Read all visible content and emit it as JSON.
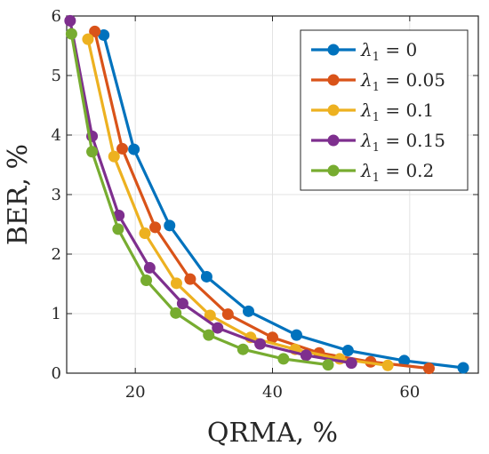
{
  "chart_data": {
    "type": "line",
    "xlabel": "QRMA, %",
    "ylabel": "BER, %",
    "xlim": [
      10,
      70
    ],
    "ylim": [
      0,
      6
    ],
    "xticks": [
      20,
      40,
      60
    ],
    "yticks": [
      0,
      1,
      2,
      3,
      4,
      5,
      6
    ],
    "grid": true,
    "legend_position": "top-right",
    "series": [
      {
        "name": "λ1 = 0",
        "legend": {
          "sym": "λ",
          "sub": "1",
          "rest": " = 0"
        },
        "color": "#0072BD",
        "x": [
          15.4,
          19.8,
          25.0,
          30.4,
          36.5,
          43.5,
          51.0,
          59.2,
          67.8
        ],
        "y": [
          5.68,
          3.76,
          2.48,
          1.62,
          1.04,
          0.64,
          0.38,
          0.21,
          0.09
        ]
      },
      {
        "name": "λ1 = 0.05",
        "legend": {
          "sym": "λ",
          "sub": "1",
          "rest": " = 0.05"
        },
        "color": "#D95319",
        "x": [
          14.1,
          18.1,
          22.9,
          28.0,
          33.5,
          40.0,
          46.8,
          54.3,
          62.8
        ],
        "y": [
          5.74,
          3.77,
          2.45,
          1.58,
          0.99,
          0.6,
          0.34,
          0.19,
          0.08
        ]
      },
      {
        "name": "λ1 = 0.1",
        "legend": {
          "sym": "λ",
          "sub": "1",
          "rest": " = 0.1"
        },
        "color": "#EDB120",
        "x": [
          13.1,
          16.9,
          21.4,
          26.0,
          30.9,
          36.8,
          43.3,
          49.8,
          56.8
        ],
        "y": [
          5.61,
          3.64,
          2.35,
          1.51,
          0.97,
          0.6,
          0.4,
          0.24,
          0.13
        ]
      },
      {
        "name": "λ1 = 0.15",
        "legend": {
          "sym": "λ",
          "sub": "1",
          "rest": " = 0.15"
        },
        "color": "#7E2F8E",
        "x": [
          10.5,
          13.7,
          17.6,
          22.1,
          26.9,
          32.0,
          38.2,
          44.9,
          51.5
        ],
        "y": [
          5.92,
          3.98,
          2.65,
          1.77,
          1.17,
          0.76,
          0.49,
          0.3,
          0.17
        ]
      },
      {
        "name": "λ1 = 0.2",
        "legend": {
          "sym": "λ",
          "sub": "1",
          "rest": " = 0.2"
        },
        "color": "#77AC30",
        "x": [
          10.7,
          13.7,
          17.5,
          21.6,
          25.9,
          30.7,
          35.7,
          41.6,
          48.1
        ],
        "y": [
          5.7,
          3.72,
          2.42,
          1.56,
          1.01,
          0.64,
          0.4,
          0.24,
          0.14
        ]
      }
    ]
  }
}
